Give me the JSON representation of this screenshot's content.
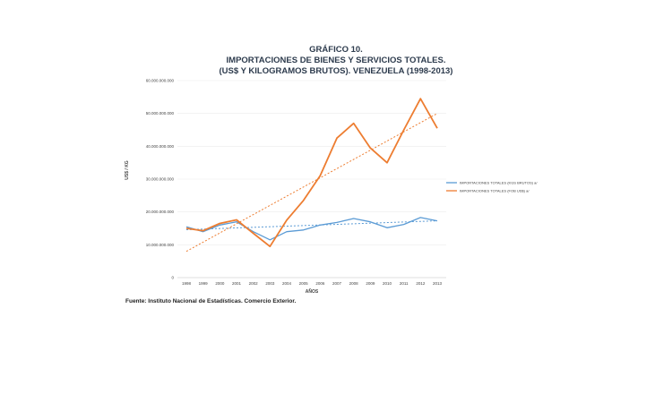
{
  "chart_data": {
    "type": "line",
    "title": "GRÁFICO 10.",
    "subtitle_1": "IMPORTACIONES DE BIENES Y SERVICIOS TOTALES.",
    "subtitle_2": "(US$ Y KILOGRAMOS BRUTOS). VENEZUELA (1998-2013)",
    "xlabel": "AÑOS",
    "ylabel": "US$ / KG",
    "categories": [
      "1998",
      "1999",
      "2000",
      "2001",
      "2002",
      "2003",
      "2004",
      "2005",
      "2006",
      "2007",
      "2008",
      "2009",
      "2010",
      "2011",
      "2012",
      "2013"
    ],
    "yticks": [
      "0",
      "10.000.000.000",
      "20.000.000.000",
      "30.000.000.000",
      "40.000.000.000",
      "50.000.000.000",
      "60.000.000.000"
    ],
    "ylim": [
      0,
      60000000000
    ],
    "series": [
      {
        "name": "IMPORTACIONES TOTALES (KGS BRUTOS) a/",
        "color": "#5b9bd5",
        "values": [
          15500000000,
          14000000000,
          16000000000,
          17000000000,
          14000000000,
          11500000000,
          14000000000,
          14500000000,
          16000000000,
          16800000000,
          18000000000,
          17000000000,
          15200000000,
          16200000000,
          18300000000,
          17300000000
        ],
        "trend": [
          14600000000,
          17300000000
        ]
      },
      {
        "name": "IMPORTACIONES TOTALES (FOB US$) a/",
        "color": "#ed7d31",
        "values": [
          15000000000,
          14300000000,
          16500000000,
          17600000000,
          13500000000,
          9500000000,
          17500000000,
          23500000000,
          31000000000,
          42500000000,
          47000000000,
          39500000000,
          35000000000,
          45000000000,
          54500000000,
          45500000000
        ],
        "trend": [
          8000000000,
          50000000000
        ]
      }
    ],
    "legend_position": "right",
    "source": "Fuente: Instituto Nacional de Estadísticas. Comercio Exterior."
  }
}
